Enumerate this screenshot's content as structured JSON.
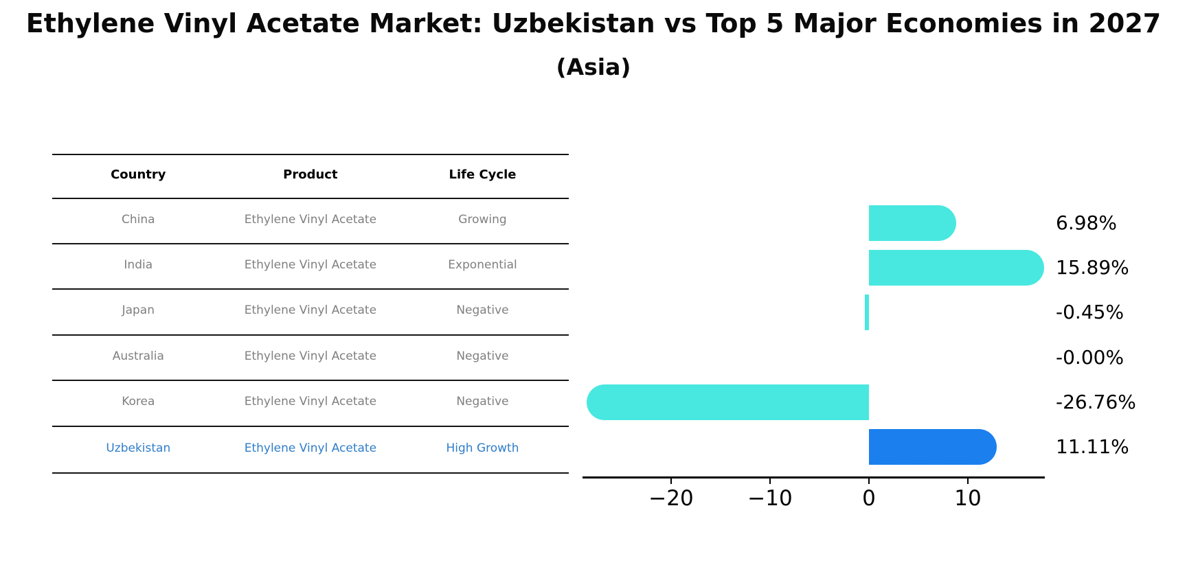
{
  "title": "Ethylene Vinyl Acetate Market: Uzbekistan vs Top 5 Major Economies in 2027",
  "subtitle": "(Asia)",
  "table": {
    "headers": [
      "Country",
      "Product",
      "Life Cycle"
    ],
    "rows": [
      {
        "country": "China",
        "product": "Ethylene Vinyl Acetate",
        "life_cycle": "Growing"
      },
      {
        "country": "India",
        "product": "Ethylene Vinyl Acetate",
        "life_cycle": "Exponential"
      },
      {
        "country": "Japan",
        "product": "Ethylene Vinyl Acetate",
        "life_cycle": "Negative"
      },
      {
        "country": "Australia",
        "product": "Ethylene Vinyl Acetate",
        "life_cycle": "Negative"
      },
      {
        "country": "Korea",
        "product": "Ethylene Vinyl Acetate",
        "life_cycle": "Negative"
      },
      {
        "country": "Uzbekistan",
        "product": "Ethylene Vinyl Acetate",
        "life_cycle": "High Growth"
      }
    ],
    "highlight_row": "Uzbekistan"
  },
  "chart_data": {
    "type": "bar",
    "orientation": "horizontal",
    "title": "Ethylene Vinyl Acetate Market: Uzbekistan vs Top 5 Major Economies in 2027",
    "subtitle": "(Asia)",
    "categories": [
      "China",
      "India",
      "Japan",
      "Australia",
      "Korea",
      "Uzbekistan"
    ],
    "values": [
      6.98,
      15.89,
      -0.45,
      -0.0,
      -26.76,
      11.11
    ],
    "value_labels": [
      "6.98%",
      "15.89%",
      "-0.45%",
      "-0.00%",
      "-26.76%",
      "11.11%"
    ],
    "xticks": [
      -20,
      -10,
      0,
      10
    ],
    "xtick_labels": [
      "−20",
      "−10",
      "0",
      "10"
    ],
    "xlim": [
      -29,
      17.8
    ],
    "grid": false,
    "legend": false,
    "bar_color": "#48e8e0",
    "highlight_index": 5,
    "highlight_color": "#1b80ee",
    "highlight_border_style": "dotted"
  },
  "colors": {
    "bar_cyan": "#48e8e0",
    "bar_blue": "#1b80ee",
    "uzbekistan_text": "#2f7dc8",
    "table_text": "#7f7f7f",
    "axis": "#000000"
  }
}
